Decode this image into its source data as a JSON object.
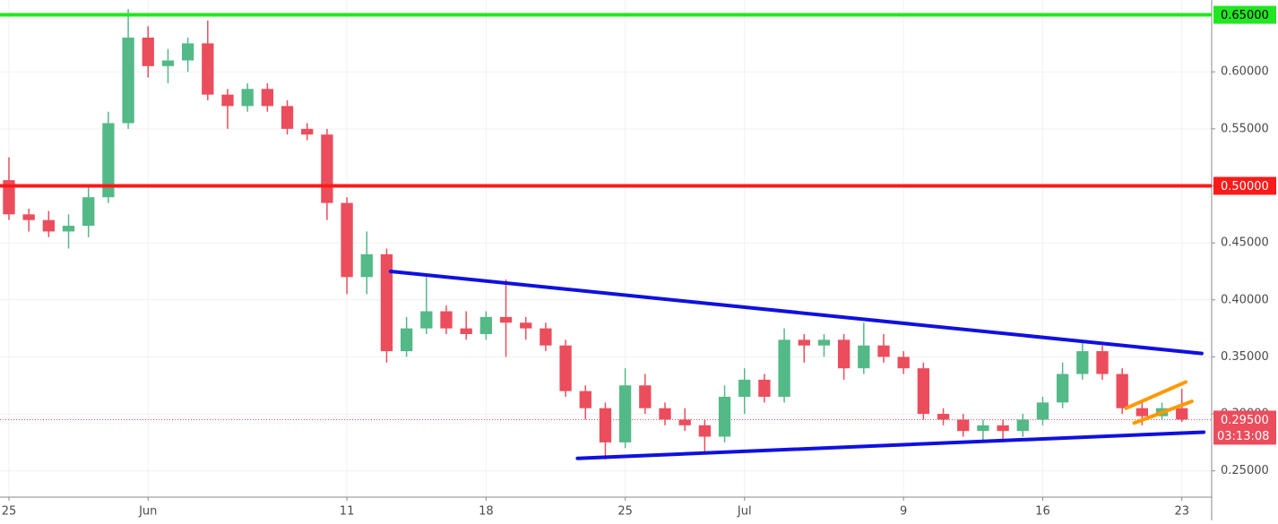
{
  "chart_data": {
    "type": "candlestick",
    "x": [
      0,
      1,
      2,
      3,
      4,
      5,
      6,
      7,
      8,
      9,
      10,
      11,
      12,
      13,
      14,
      15,
      16,
      17,
      18,
      19,
      20,
      21,
      22,
      23,
      24,
      25,
      26,
      27,
      28,
      29,
      30,
      31,
      32,
      33,
      34,
      35,
      36,
      37,
      38,
      39,
      40,
      41,
      42,
      43,
      44,
      45,
      46,
      47,
      48,
      49,
      50,
      51,
      52,
      53,
      54,
      55,
      56,
      57,
      58,
      59
    ],
    "open": [
      0.505,
      0.475,
      0.47,
      0.46,
      0.465,
      0.49,
      0.555,
      0.63,
      0.605,
      0.61,
      0.625,
      0.58,
      0.57,
      0.585,
      0.57,
      0.55,
      0.545,
      0.485,
      0.42,
      0.44,
      0.355,
      0.375,
      0.39,
      0.375,
      0.37,
      0.385,
      0.38,
      0.375,
      0.36,
      0.32,
      0.305,
      0.275,
      0.325,
      0.305,
      0.295,
      0.29,
      0.28,
      0.315,
      0.33,
      0.315,
      0.365,
      0.36,
      0.365,
      0.34,
      0.36,
      0.35,
      0.34,
      0.3,
      0.295,
      0.285,
      0.29,
      0.285,
      0.295,
      0.31,
      0.335,
      0.355,
      0.335,
      0.305,
      0.298,
      0.305
    ],
    "high": [
      0.525,
      0.48,
      0.478,
      0.475,
      0.5,
      0.565,
      0.655,
      0.64,
      0.62,
      0.63,
      0.645,
      0.585,
      0.59,
      0.59,
      0.575,
      0.555,
      0.55,
      0.49,
      0.46,
      0.445,
      0.385,
      0.42,
      0.395,
      0.39,
      0.39,
      0.418,
      0.385,
      0.38,
      0.365,
      0.325,
      0.31,
      0.34,
      0.335,
      0.31,
      0.305,
      0.295,
      0.325,
      0.34,
      0.335,
      0.375,
      0.37,
      0.37,
      0.37,
      0.38,
      0.37,
      0.355,
      0.345,
      0.305,
      0.3,
      0.295,
      0.295,
      0.3,
      0.315,
      0.345,
      0.365,
      0.36,
      0.34,
      0.31,
      0.31,
      0.322
    ],
    "low": [
      0.47,
      0.46,
      0.455,
      0.445,
      0.455,
      0.485,
      0.55,
      0.595,
      0.59,
      0.6,
      0.575,
      0.55,
      0.565,
      0.565,
      0.545,
      0.54,
      0.47,
      0.405,
      0.405,
      0.345,
      0.35,
      0.37,
      0.37,
      0.365,
      0.365,
      0.35,
      0.365,
      0.355,
      0.315,
      0.295,
      0.26,
      0.27,
      0.3,
      0.29,
      0.285,
      0.265,
      0.275,
      0.3,
      0.31,
      0.31,
      0.345,
      0.35,
      0.33,
      0.335,
      0.345,
      0.335,
      0.295,
      0.29,
      0.28,
      0.275,
      0.275,
      0.28,
      0.29,
      0.305,
      0.33,
      0.33,
      0.3,
      0.29,
      0.295,
      0.293
    ],
    "close": [
      0.475,
      0.47,
      0.46,
      0.465,
      0.49,
      0.555,
      0.63,
      0.605,
      0.61,
      0.625,
      0.58,
      0.57,
      0.585,
      0.57,
      0.55,
      0.545,
      0.485,
      0.42,
      0.44,
      0.355,
      0.375,
      0.39,
      0.375,
      0.37,
      0.385,
      0.38,
      0.375,
      0.36,
      0.32,
      0.305,
      0.275,
      0.325,
      0.305,
      0.295,
      0.29,
      0.28,
      0.315,
      0.33,
      0.315,
      0.365,
      0.36,
      0.365,
      0.34,
      0.36,
      0.35,
      0.34,
      0.3,
      0.295,
      0.285,
      0.29,
      0.285,
      0.295,
      0.31,
      0.335,
      0.355,
      0.335,
      0.305,
      0.298,
      0.305,
      0.295
    ],
    "up_color": "#53b987",
    "down_color": "#eb4d5c",
    "xlim": [
      -0.45,
      60.5
    ],
    "ylim": [
      0.227,
      0.663
    ],
    "xticks": [
      {
        "value": 0,
        "label": "25"
      },
      {
        "value": 7,
        "label": "Jun"
      },
      {
        "value": 17,
        "label": "11"
      },
      {
        "value": 24,
        "label": "18"
      },
      {
        "value": 31,
        "label": "25"
      },
      {
        "value": 37,
        "label": "Jul"
      },
      {
        "value": 45,
        "label": "9"
      },
      {
        "value": 52,
        "label": "16"
      },
      {
        "value": 59,
        "label": "23"
      }
    ],
    "yticks": [
      {
        "value": 0.25,
        "label": "0.25000"
      },
      {
        "value": 0.3,
        "label": "0.30000"
      },
      {
        "value": 0.35,
        "label": "0.35000"
      },
      {
        "value": 0.4,
        "label": "0.40000"
      },
      {
        "value": 0.45,
        "label": "0.45000"
      },
      {
        "value": 0.5,
        "label": "0.50000"
      },
      {
        "value": 0.55,
        "label": "0.55000"
      },
      {
        "value": 0.6,
        "label": "0.60000"
      }
    ],
    "grid": true,
    "levels": [
      {
        "value": 0.65,
        "label": "0.65000",
        "color": "#22e622"
      },
      {
        "value": 0.5,
        "label": "0.50000",
        "color": "#ff1a1a"
      }
    ],
    "trendlines": [
      {
        "x": [
          19.2,
          60.0
        ],
        "y": [
          0.425,
          0.353
        ],
        "color": "#1010e0"
      },
      {
        "x": [
          28.6,
          60.1
        ],
        "y": [
          0.261,
          0.284
        ],
        "color": "#1010e0"
      },
      {
        "x": [
          56.2,
          59.2
        ],
        "y": [
          0.305,
          0.328
        ],
        "color": "#ff9900"
      },
      {
        "x": [
          56.6,
          59.5
        ],
        "y": [
          0.292,
          0.311
        ],
        "color": "#ff9900"
      }
    ],
    "last_price": {
      "value": 0.295,
      "label": "0.29500",
      "countdown": "03:13:08",
      "color": "#eb4d5c"
    }
  }
}
